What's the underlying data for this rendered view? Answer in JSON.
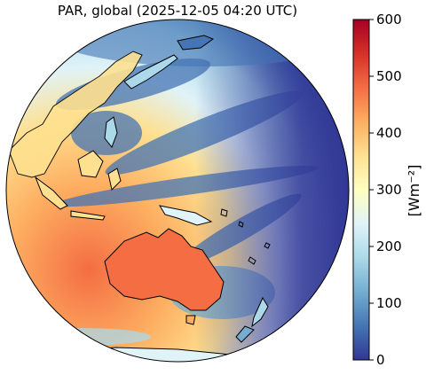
{
  "title": "PAR, global (2025-12-05 04:20 UTC)",
  "colorbar": {
    "unit_label": "[Wm⁻²]",
    "ticks": [
      "0",
      "100",
      "200",
      "300",
      "400",
      "500",
      "600"
    ],
    "range": [
      0,
      600
    ],
    "colormap": [
      "#313695",
      "#4575b4",
      "#74add1",
      "#abd9e9",
      "#e0f3f8",
      "#ffffbf",
      "#fee090",
      "#fdae61",
      "#f46d43",
      "#d73027",
      "#a50026"
    ]
  },
  "map": {
    "projection": "orthographic, centered on the western Pacific / Australia",
    "land_outline_color": "#000000"
  }
}
